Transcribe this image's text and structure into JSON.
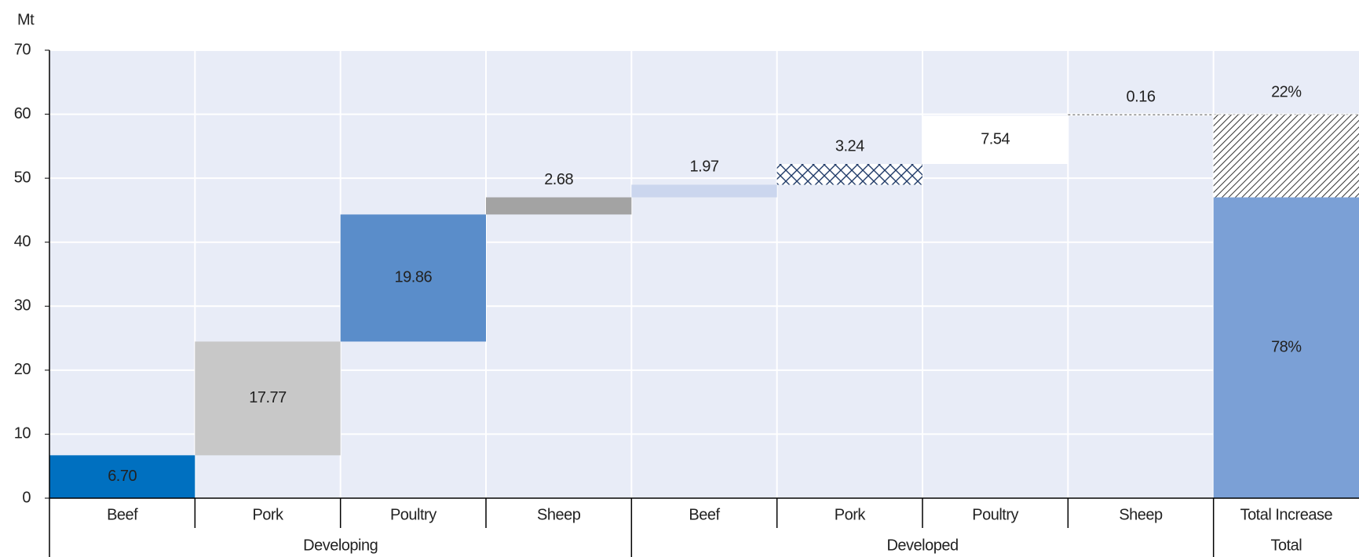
{
  "chart_data": {
    "type": "waterfall",
    "y_label": "Mt",
    "categories": [
      "Beef",
      "Pork",
      "Poultry",
      "Sheep",
      "Beef",
      "Pork",
      "Poultry",
      "Sheep"
    ],
    "category_group": [
      "Developing",
      "Developing",
      "Developing",
      "Developing",
      "Developed",
      "Developed",
      "Developed",
      "Developed"
    ],
    "values": [
      6.7,
      17.77,
      19.86,
      2.68,
      1.97,
      3.24,
      7.54,
      0.16
    ],
    "value_labels": [
      "6.70",
      "17.77",
      "19.86",
      "2.68",
      "1.97",
      "3.24",
      "7.54",
      "0.16"
    ],
    "colors": [
      "#0070c0",
      "#c8c8c8",
      "#5a8dca",
      "#a3a3a3",
      "#cbd6ee",
      "#1f3a68",
      "#ffffff",
      "#ffffff"
    ],
    "styles": [
      "solid",
      "solid",
      "solid",
      "solid",
      "solid",
      "crosshatch",
      "solid",
      "dashed-top"
    ],
    "total": {
      "category": "Total Increase",
      "group": "Total",
      "values": [
        47.01,
        12.91
      ],
      "labels": [
        "78%",
        "22%"
      ],
      "colors": [
        "#7ba0d6",
        "#333333"
      ],
      "styles": [
        "solid",
        "hatch"
      ]
    },
    "ylim": [
      0,
      70
    ],
    "yticks": [
      0,
      10,
      20,
      30,
      40,
      50,
      60,
      70
    ],
    "grid": true
  }
}
